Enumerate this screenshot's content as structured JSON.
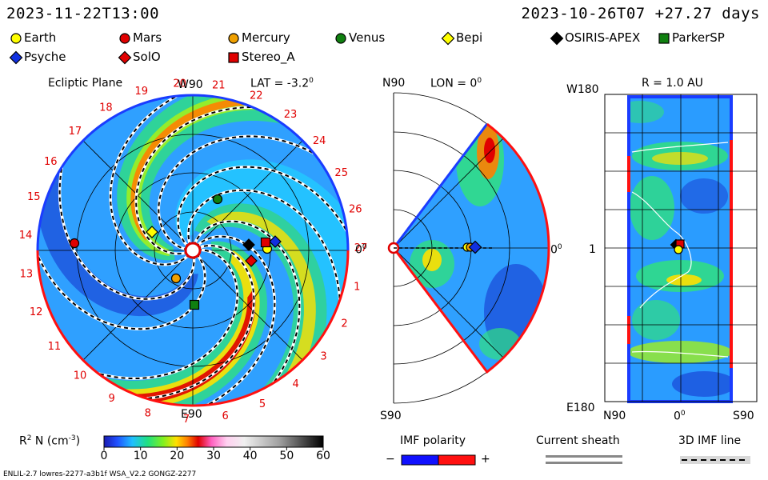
{
  "header": {
    "left_time": "2023-11-22T13:00",
    "right_time": "2023-10-26T07 +27.27 days"
  },
  "legend": [
    {
      "name": "Earth",
      "marker": "circle",
      "color": "#ffff00"
    },
    {
      "name": "Mars",
      "marker": "circle",
      "color": "#e00000"
    },
    {
      "name": "Mercury",
      "marker": "circle",
      "color": "#f0a000"
    },
    {
      "name": "Venus",
      "marker": "circle",
      "color": "#108010"
    },
    {
      "name": "Bepi",
      "marker": "diamond",
      "color": "#ffff00"
    },
    {
      "name": "OSIRIS-APEX",
      "marker": "diamond",
      "color": "#000000"
    },
    {
      "name": "ParkerSP",
      "marker": "square",
      "color": "#108010"
    },
    {
      "name": "Psyche",
      "marker": "diamond",
      "color": "#1030e0"
    },
    {
      "name": "SolO",
      "marker": "diamond",
      "color": "#e00000"
    },
    {
      "name": "Stereo_A",
      "marker": "square",
      "color": "#e00000"
    }
  ],
  "panels": {
    "ecliptic": {
      "title": "Ecliptic Plane",
      "top": "W90",
      "bottom": "E90",
      "right": "0",
      "lat": "LAT = -3.2",
      "degree_mark": "0"
    },
    "meridional": {
      "top": "N90",
      "bottom": "S90",
      "right": "0",
      "lon": "LON = 0",
      "degree_mark": "0"
    },
    "sphere": {
      "title": "R = 1.0 AU",
      "top_left": "W180",
      "bottom_left": "E180",
      "left_mid": "1",
      "bottom_labels": [
        "N90",
        "0",
        "S90"
      ],
      "degree_mark": "0"
    }
  },
  "carrington_days": [
    "1",
    "2",
    "3",
    "4",
    "5",
    "6",
    "7",
    "8",
    "9",
    "10",
    "11",
    "12",
    "13",
    "14",
    "15",
    "16",
    "17",
    "18",
    "19",
    "20",
    "21",
    "22",
    "23",
    "24",
    "25",
    "26",
    "27"
  ],
  "colorbar": {
    "label": "R N (cm )",
    "exponent_r": "2",
    "exponent_cm": "-3",
    "ticks": [
      "0",
      "10",
      "20",
      "30",
      "40",
      "50",
      "60"
    ],
    "range": [
      0,
      60
    ]
  },
  "imf": {
    "title": "IMF polarity",
    "minus": "−",
    "plus": "+",
    "sheath_title": "Current sheath",
    "line_title": "3D IMF line"
  },
  "footer": {
    "left": "ENLIL-2.7 lowres-2277-a3b1f WSA_V2.2 GONGZ-2277"
  },
  "chart_data": [
    {
      "type": "heatmap",
      "title": "Ecliptic Plane",
      "variable": "R N (cm )",
      "value_range": [
        0,
        60
      ],
      "bodies": [
        "Earth",
        "Mars",
        "Mercury",
        "Venus",
        "Bepi",
        "OSIRIS-APEX",
        "ParkerSP",
        "Psyche",
        "SolO",
        "Stereo_A"
      ]
    },
    {
      "type": "heatmap",
      "title": "LON = 0",
      "variable": "R N (cm )",
      "value_range": [
        0,
        60
      ]
    },
    {
      "type": "heatmap",
      "title": "R = 1.0 AU",
      "variable": "R N (cm )",
      "value_range": [
        0,
        60
      ]
    }
  ]
}
